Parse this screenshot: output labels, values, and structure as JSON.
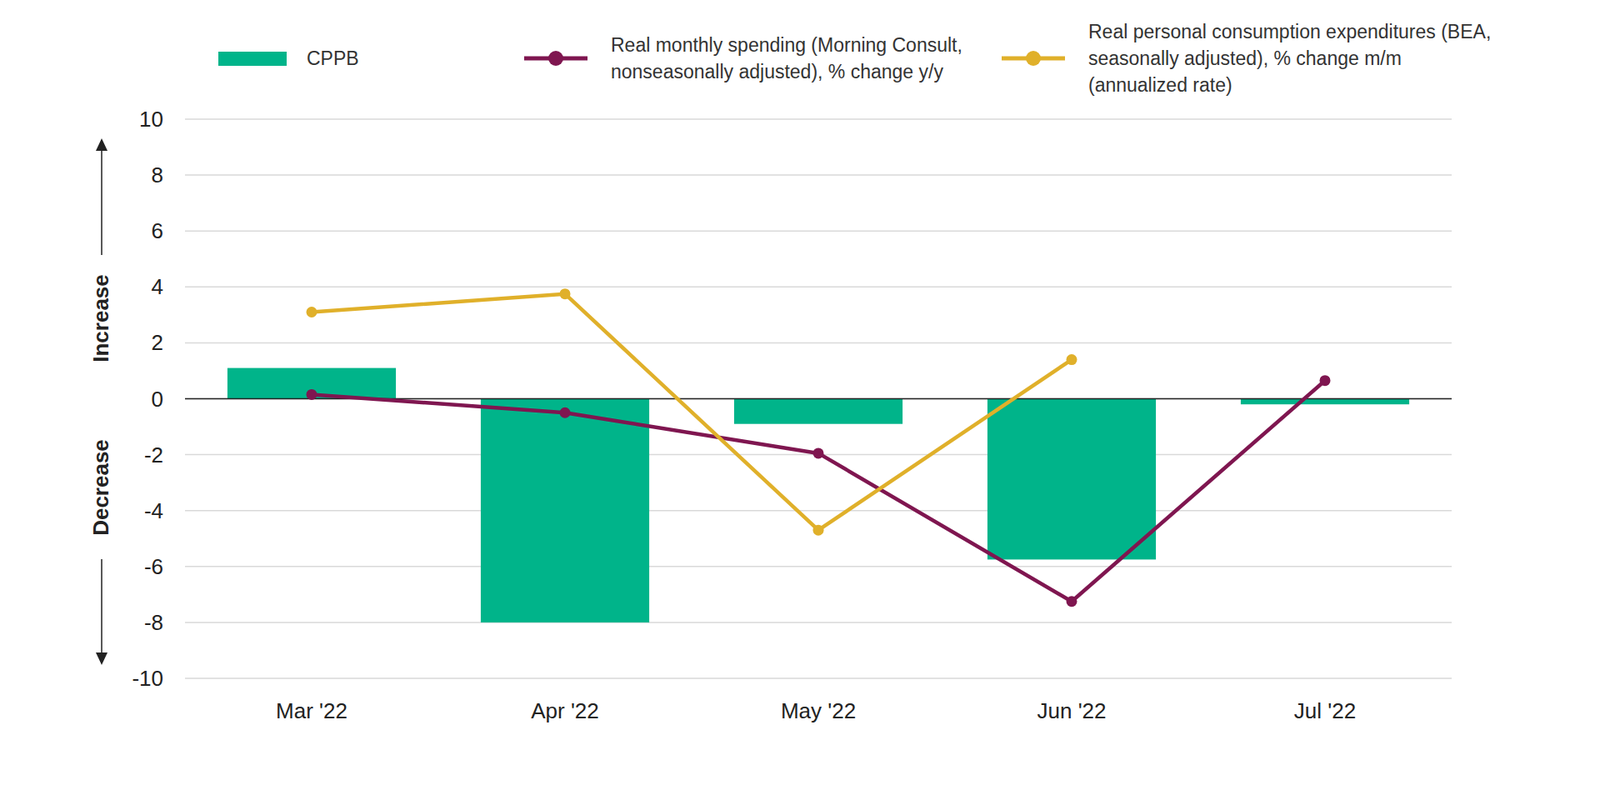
{
  "chart_data": {
    "type": "bar",
    "annotations": [
      "Increase",
      "Decrease"
    ],
    "categories": [
      "Mar '22",
      "Apr '22",
      "May '22",
      "Jun '22",
      "Jul '22"
    ],
    "series": [
      {
        "name": "CPPB",
        "type": "bar",
        "color": "#00b48a",
        "values": [
          1.1,
          -8.0,
          -0.9,
          -5.75,
          -0.2
        ]
      },
      {
        "name": "Real monthly spending (Morning Consult, nonseasonally adjusted), % change y/y",
        "type": "line",
        "color": "#7f1650",
        "marker": "circle",
        "values": [
          0.15,
          -0.5,
          -1.95,
          -7.25,
          0.65
        ]
      },
      {
        "name": "Real personal consumption expenditures (BEA, seasonally adjusted), % change m/m (annualized rate)",
        "type": "line",
        "color": "#e0b02a",
        "marker": "circle",
        "values": [
          3.1,
          3.75,
          -4.7,
          1.4,
          null
        ]
      }
    ],
    "ylim": [
      -10,
      10
    ],
    "yticks": [
      -10,
      -8,
      -6,
      -4,
      -2,
      0,
      2,
      4,
      6,
      8,
      10
    ],
    "grid": true,
    "legend": "top"
  }
}
